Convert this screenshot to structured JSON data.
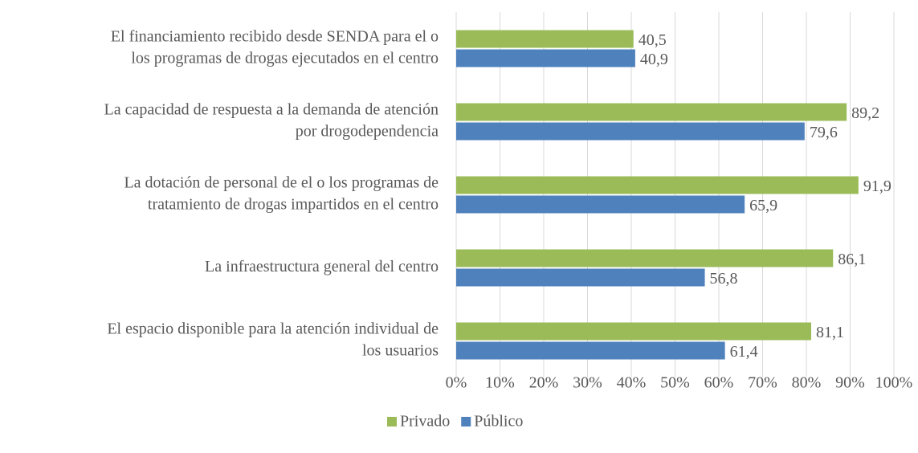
{
  "chart_data": {
    "type": "barh",
    "categories": [
      [
        "El financiamiento recibido desde SENDA para el o",
        "los programas de drogas ejecutados en el centro"
      ],
      [
        "La capacidad de respuesta a la demanda de atención",
        "por drogodependencia"
      ],
      [
        "La dotación de personal de el o los programas de",
        "tratamiento de drogas impartidos en el centro"
      ],
      [
        "La infraestructura general del centro"
      ],
      [
        "El espacio disponible para la atención individual de",
        "los usuarios"
      ]
    ],
    "series": [
      {
        "name": "Privado",
        "color": "#9bbb59",
        "values": [
          40.5,
          89.2,
          91.9,
          86.1,
          81.1
        ],
        "value_labels": [
          "40,5",
          "89,2",
          "91,9",
          "86,1",
          "81,1"
        ]
      },
      {
        "name": "Público",
        "color": "#4f81bd",
        "values": [
          40.9,
          79.6,
          65.9,
          56.8,
          61.4
        ],
        "value_labels": [
          "40,9",
          "79,6",
          "65,9",
          "56,8",
          "61,4"
        ]
      }
    ],
    "xlim": [
      0,
      100
    ],
    "xticks": [
      {
        "value": 0,
        "label": "0%"
      },
      {
        "value": 10,
        "label": "10%"
      },
      {
        "value": 20,
        "label": "20%"
      },
      {
        "value": 30,
        "label": "30%"
      },
      {
        "value": 40,
        "label": "40%"
      },
      {
        "value": 50,
        "label": "50%"
      },
      {
        "value": 60,
        "label": "60%"
      },
      {
        "value": 70,
        "label": "70%"
      },
      {
        "value": 80,
        "label": "80%"
      },
      {
        "value": 90,
        "label": "90%"
      },
      {
        "value": 100,
        "label": "100%"
      }
    ],
    "grid": true,
    "legend": "bottom"
  }
}
